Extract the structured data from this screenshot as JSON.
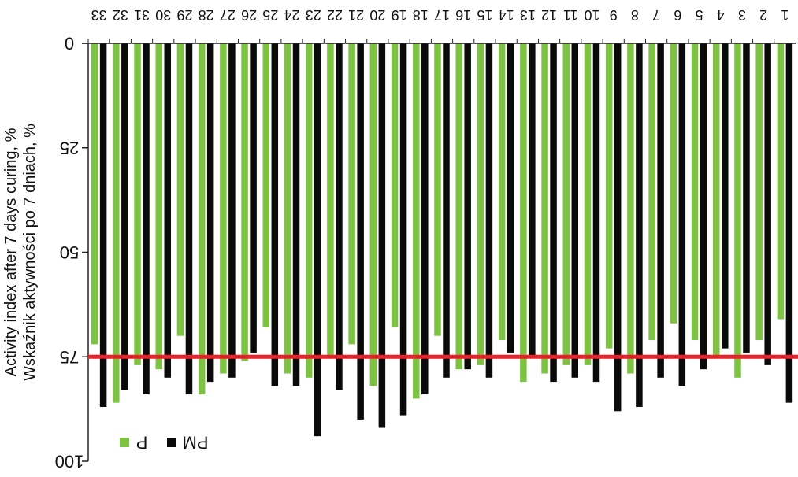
{
  "chart_data": {
    "type": "bar",
    "orientation": "vertical-inverted",
    "mirrored": true,
    "ylabel_lines": [
      "Activity index after 7 days curing, %",
      "Wskaźnik aktywności po 7 dniach, %"
    ],
    "ylim": [
      0,
      100
    ],
    "yticks": [
      {
        "value": 0,
        "label": "0"
      },
      {
        "value": 25,
        "label": "25"
      },
      {
        "value": 50,
        "label": "50"
      },
      {
        "value": 75,
        "label": "75"
      },
      {
        "value": 100,
        "label": "100"
      }
    ],
    "categories": [
      "1",
      "2",
      "3",
      "4",
      "5",
      "6",
      "7",
      "8",
      "9",
      "10",
      "11",
      "12",
      "13",
      "14",
      "15",
      "16",
      "17",
      "18",
      "19",
      "20",
      "21",
      "22",
      "23",
      "24",
      "25",
      "26",
      "27",
      "28",
      "29",
      "30",
      "31",
      "32",
      "33"
    ],
    "series": [
      {
        "name": "P",
        "color": "#7dc242",
        "values": [
          66,
          71,
          80,
          75,
          71,
          67,
          71,
          79,
          73,
          77,
          77,
          79,
          81,
          71,
          77,
          78,
          70,
          85,
          68,
          82,
          72,
          75,
          80,
          79,
          68,
          76,
          79,
          84,
          70,
          78,
          77,
          86,
          72
        ]
      },
      {
        "name": "PM",
        "color": "#0a0a0a",
        "values": [
          86,
          77,
          74,
          73,
          78,
          82,
          80,
          87,
          88,
          81,
          80,
          81,
          75,
          74,
          80,
          78,
          80,
          84,
          89,
          92,
          90,
          83,
          94,
          82,
          82,
          74,
          80,
          81,
          84,
          80,
          84,
          83,
          87
        ]
      }
    ],
    "reference_line": {
      "value": 75,
      "color": "#e8202a"
    },
    "legend": {
      "position": "bottom-left"
    },
    "grid": false
  }
}
